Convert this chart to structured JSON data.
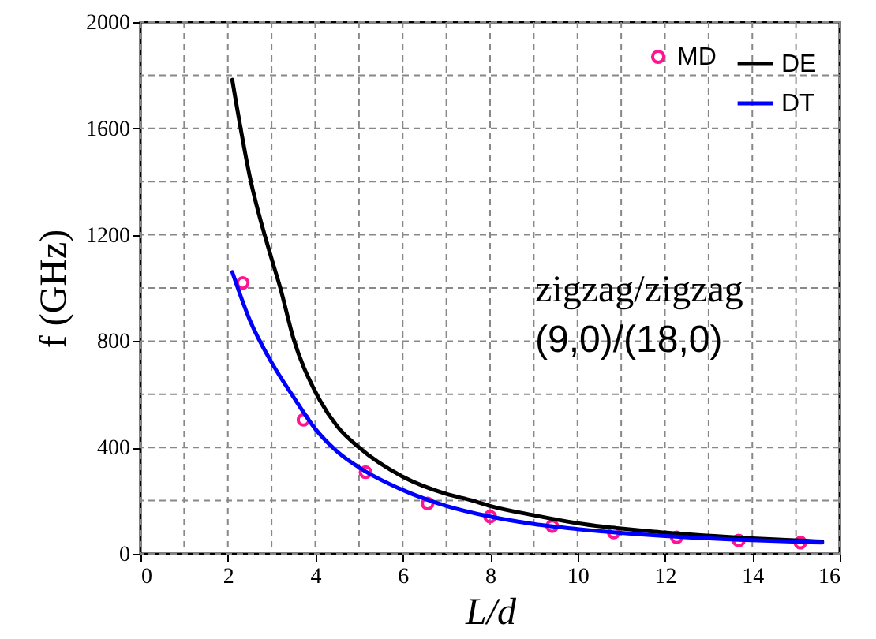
{
  "chart_data": {
    "type": "line",
    "xlabel": "L/d",
    "ylabel": "f (GHz)",
    "annotations": [
      "zigzag/zigzag",
      "(9,0)/(18,0)"
    ],
    "xlim": [
      0,
      16
    ],
    "ylim": [
      0,
      2000
    ],
    "xticks": [
      0,
      {
        "value": 1,
        "label": null
      },
      2,
      {
        "value": 3,
        "label": null
      },
      4,
      {
        "value": 5,
        "label": null
      },
      6,
      {
        "value": 7,
        "label": null
      },
      8,
      {
        "value": 9,
        "label": null
      },
      10,
      {
        "value": 11,
        "label": null
      },
      12,
      {
        "value": 13,
        "label": null
      },
      14,
      {
        "value": 15,
        "label": null
      },
      16
    ],
    "yticks": [
      0,
      {
        "value": 200,
        "label": null
      },
      400,
      {
        "value": 600,
        "label": null
      },
      800,
      {
        "value": 1000,
        "label": null
      },
      1200,
      {
        "value": 1400,
        "label": null
      },
      1600,
      {
        "value": 1800,
        "label": null
      },
      2000
    ],
    "grid": true,
    "legend": "top right",
    "series": [
      {
        "name": "MD",
        "type": "scatter",
        "marker": "circle",
        "color": "#ff1493",
        "x": [
          2.34,
          3.73,
          5.15,
          6.57,
          8.0,
          9.42,
          10.83,
          12.27,
          13.69,
          15.1
        ],
        "values": [
          1019,
          504,
          307,
          189,
          140,
          104,
          80,
          62,
          50,
          42
        ]
      },
      {
        "name": "DE",
        "color": "#000000",
        "x": [
          2.1,
          2.5,
          3,
          3.2,
          3.5,
          4,
          4.5,
          5,
          6,
          7,
          7.6,
          8,
          9,
          10,
          12,
          14,
          15.6
        ],
        "values": [
          1783,
          1420,
          1110,
          1000,
          810,
          610,
          480,
          400,
          290,
          225,
          200,
          180,
          145,
          115,
          80,
          58,
          46
        ]
      },
      {
        "name": "DT",
        "color": "#0000ff",
        "x": [
          2.1,
          2.5,
          3,
          3.5,
          4,
          4.5,
          5,
          6,
          7,
          8,
          9,
          10,
          12,
          14,
          15.6
        ],
        "values": [
          1060,
          880,
          720,
          590,
          470,
          385,
          325,
          240,
          180,
          140,
          112,
          93,
          67,
          51,
          42
        ]
      }
    ]
  }
}
